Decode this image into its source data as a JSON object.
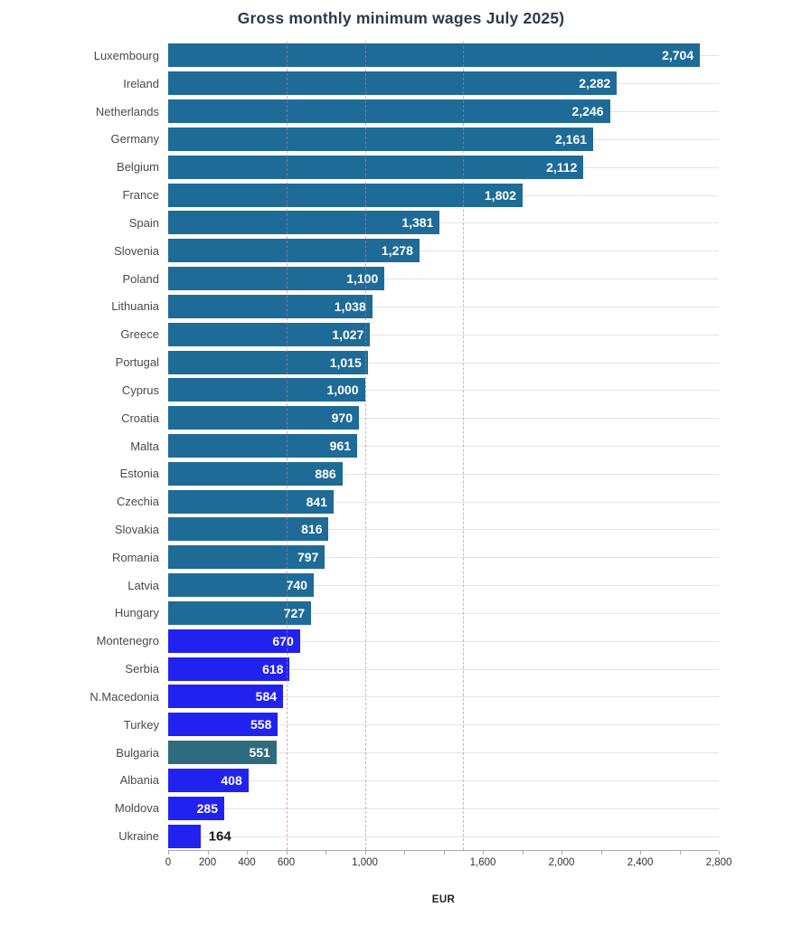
{
  "title": "Gross monthly minimum wages July 2025)",
  "chart_data": {
    "type": "bar",
    "orientation": "horizontal",
    "title": "Gross monthly minimum wages July 2025)",
    "xlabel": "EUR",
    "ylabel": "",
    "xlim": [
      0,
      2800
    ],
    "grid": "per-row horizontal hairlines; dashed vertical reference lines",
    "legend": "none",
    "x_minor_tick_step": 200,
    "x_ticks_labeled": [
      {
        "value": 0,
        "label": "0"
      },
      {
        "value": 200,
        "label": "200"
      },
      {
        "value": 400,
        "label": "400"
      },
      {
        "value": 600,
        "label": "600"
      },
      {
        "value": 1000,
        "label": "1,000"
      },
      {
        "value": 1600,
        "label": "1,600"
      },
      {
        "value": 2000,
        "label": "2,000"
      },
      {
        "value": 2400,
        "label": "2,400"
      },
      {
        "value": 2800,
        "label": "2,800"
      }
    ],
    "reference_lines": [
      600,
      1000,
      1500
    ],
    "palette": {
      "eu": "#1f6b97",
      "non_eu": "#2222f0",
      "eu_alt": "#2f6b7e"
    },
    "value_label_color_inside": "#ffffff",
    "value_label_color_outside": "#1a1a1a",
    "rows": [
      {
        "label": "Luxembourg",
        "value": 2704,
        "display": "2,704",
        "group": "eu"
      },
      {
        "label": "Ireland",
        "value": 2282,
        "display": "2,282",
        "group": "eu"
      },
      {
        "label": "Netherlands",
        "value": 2246,
        "display": "2,246",
        "group": "eu"
      },
      {
        "label": "Germany",
        "value": 2161,
        "display": "2,161",
        "group": "eu"
      },
      {
        "label": "Belgium",
        "value": 2112,
        "display": "2,112",
        "group": "eu"
      },
      {
        "label": "France",
        "value": 1802,
        "display": "1,802",
        "group": "eu"
      },
      {
        "label": "Spain",
        "value": 1381,
        "display": "1,381",
        "group": "eu"
      },
      {
        "label": "Slovenia",
        "value": 1278,
        "display": "1,278",
        "group": "eu"
      },
      {
        "label": "Poland",
        "value": 1100,
        "display": "1,100",
        "group": "eu"
      },
      {
        "label": "Lithuania",
        "value": 1038,
        "display": "1,038",
        "group": "eu"
      },
      {
        "label": "Greece",
        "value": 1027,
        "display": "1,027",
        "group": "eu"
      },
      {
        "label": "Portugal",
        "value": 1015,
        "display": "1,015",
        "group": "eu"
      },
      {
        "label": "Cyprus",
        "value": 1000,
        "display": "1,000",
        "group": "eu"
      },
      {
        "label": "Croatia",
        "value": 970,
        "display": "970",
        "group": "eu"
      },
      {
        "label": "Malta",
        "value": 961,
        "display": "961",
        "group": "eu"
      },
      {
        "label": "Estonia",
        "value": 886,
        "display": "886",
        "group": "eu"
      },
      {
        "label": "Czechia",
        "value": 841,
        "display": "841",
        "group": "eu"
      },
      {
        "label": "Slovakia",
        "value": 816,
        "display": "816",
        "group": "eu"
      },
      {
        "label": "Romania",
        "value": 797,
        "display": "797",
        "group": "eu"
      },
      {
        "label": "Latvia",
        "value": 740,
        "display": "740",
        "group": "eu"
      },
      {
        "label": "Hungary",
        "value": 727,
        "display": "727",
        "group": "eu"
      },
      {
        "label": "Montenegro",
        "value": 670,
        "display": "670",
        "group": "non_eu"
      },
      {
        "label": "Serbia",
        "value": 618,
        "display": "618",
        "group": "non_eu"
      },
      {
        "label": "N.Macedonia",
        "value": 584,
        "display": "584",
        "group": "non_eu"
      },
      {
        "label": "Turkey",
        "value": 558,
        "display": "558",
        "group": "non_eu"
      },
      {
        "label": "Bulgaria",
        "value": 551,
        "display": "551",
        "group": "eu_alt"
      },
      {
        "label": "Albania",
        "value": 408,
        "display": "408",
        "group": "non_eu"
      },
      {
        "label": "Moldova",
        "value": 285,
        "display": "285",
        "group": "non_eu"
      },
      {
        "label": "Ukraine",
        "value": 164,
        "display": "164",
        "group": "non_eu",
        "label_outside": true
      }
    ]
  }
}
